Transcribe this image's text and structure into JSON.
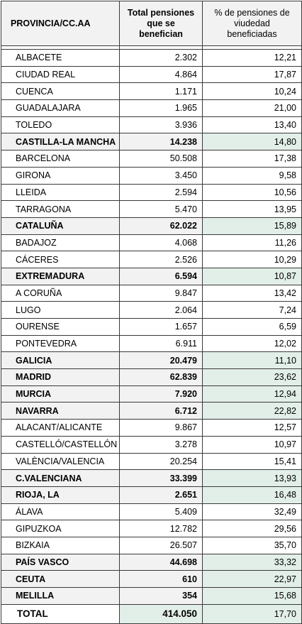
{
  "header": {
    "col1": "PROVINCIA/CC.AA",
    "col2_lines": [
      "Total pensiones",
      "que se",
      "benefician"
    ],
    "col3_lines": [
      "% de pensiones de",
      "viudedad",
      "beneficiadas"
    ]
  },
  "rows": [
    {
      "name": "ALBACETE",
      "total": "2.302",
      "pct": "12,21",
      "sub": false
    },
    {
      "name": "CIUDAD REAL",
      "total": "4.864",
      "pct": "17,87",
      "sub": false
    },
    {
      "name": "CUENCA",
      "total": "1.171",
      "pct": "10,24",
      "sub": false
    },
    {
      "name": "GUADALAJARA",
      "total": "1.965",
      "pct": "21,00",
      "sub": false
    },
    {
      "name": "TOLEDO",
      "total": "3.936",
      "pct": "13,40",
      "sub": false
    },
    {
      "name": "CASTILLA-LA MANCHA",
      "total": "14.238",
      "pct": "14,80",
      "sub": true
    },
    {
      "name": "BARCELONA",
      "total": "50.508",
      "pct": "17,38",
      "sub": false
    },
    {
      "name": "GIRONA",
      "total": "3.450",
      "pct": "9,58",
      "sub": false
    },
    {
      "name": "LLEIDA",
      "total": "2.594",
      "pct": "10,56",
      "sub": false
    },
    {
      "name": "TARRAGONA",
      "total": "5.470",
      "pct": "13,95",
      "sub": false
    },
    {
      "name": "CATALUÑA",
      "total": "62.022",
      "pct": "15,89",
      "sub": true
    },
    {
      "name": "BADAJOZ",
      "total": "4.068",
      "pct": "11,26",
      "sub": false
    },
    {
      "name": "CÁCERES",
      "total": "2.526",
      "pct": "10,29",
      "sub": false
    },
    {
      "name": "EXTREMADURA",
      "total": "6.594",
      "pct": "10,87",
      "sub": true
    },
    {
      "name": "A CORUÑA",
      "total": "9.847",
      "pct": "13,42",
      "sub": false
    },
    {
      "name": "LUGO",
      "total": "2.064",
      "pct": "7,24",
      "sub": false
    },
    {
      "name": "OURENSE",
      "total": "1.657",
      "pct": "6,59",
      "sub": false
    },
    {
      "name": "PONTEVEDRA",
      "total": "6.911",
      "pct": "12,02",
      "sub": false
    },
    {
      "name": "GALICIA",
      "total": "20.479",
      "pct": "11,10",
      "sub": true
    },
    {
      "name": "MADRID",
      "total": "62.839",
      "pct": "23,62",
      "sub": true
    },
    {
      "name": "MURCIA",
      "total": "7.920",
      "pct": "12,94",
      "sub": true
    },
    {
      "name": "NAVARRA",
      "total": "6.712",
      "pct": "22,82",
      "sub": true
    },
    {
      "name": "ALACANT/ALICANTE",
      "total": "9.867",
      "pct": "12,57",
      "sub": false
    },
    {
      "name": "CASTELLÓ/CASTELLÓN",
      "total": "3.278",
      "pct": "10,97",
      "sub": false
    },
    {
      "name": "VALÈNCIA/VALENCIA",
      "total": "20.254",
      "pct": "15,41",
      "sub": false
    },
    {
      "name": "C.VALENCIANA",
      "total": "33.399",
      "pct": "13,93",
      "sub": true
    },
    {
      "name": "RIOJA, LA",
      "total": "2.651",
      "pct": "16,48",
      "sub": true
    },
    {
      "name": "ÁLAVA",
      "total": "5.409",
      "pct": "32,49",
      "sub": false
    },
    {
      "name": "GIPUZKOA",
      "total": "12.782",
      "pct": "29,56",
      "sub": false
    },
    {
      "name": "BIZKAIA",
      "total": "26.507",
      "pct": "35,70",
      "sub": false
    },
    {
      "name": "PAÍS VASCO",
      "total": "44.698",
      "pct": "33,32",
      "sub": true
    },
    {
      "name": "CEUTA",
      "total": "610",
      "pct": "22,97",
      "sub": true
    },
    {
      "name": "MELILLA",
      "total": "354",
      "pct": "15,68",
      "sub": true
    }
  ],
  "total": {
    "name": "TOTAL",
    "total": "414.050",
    "pct": "17,70"
  }
}
